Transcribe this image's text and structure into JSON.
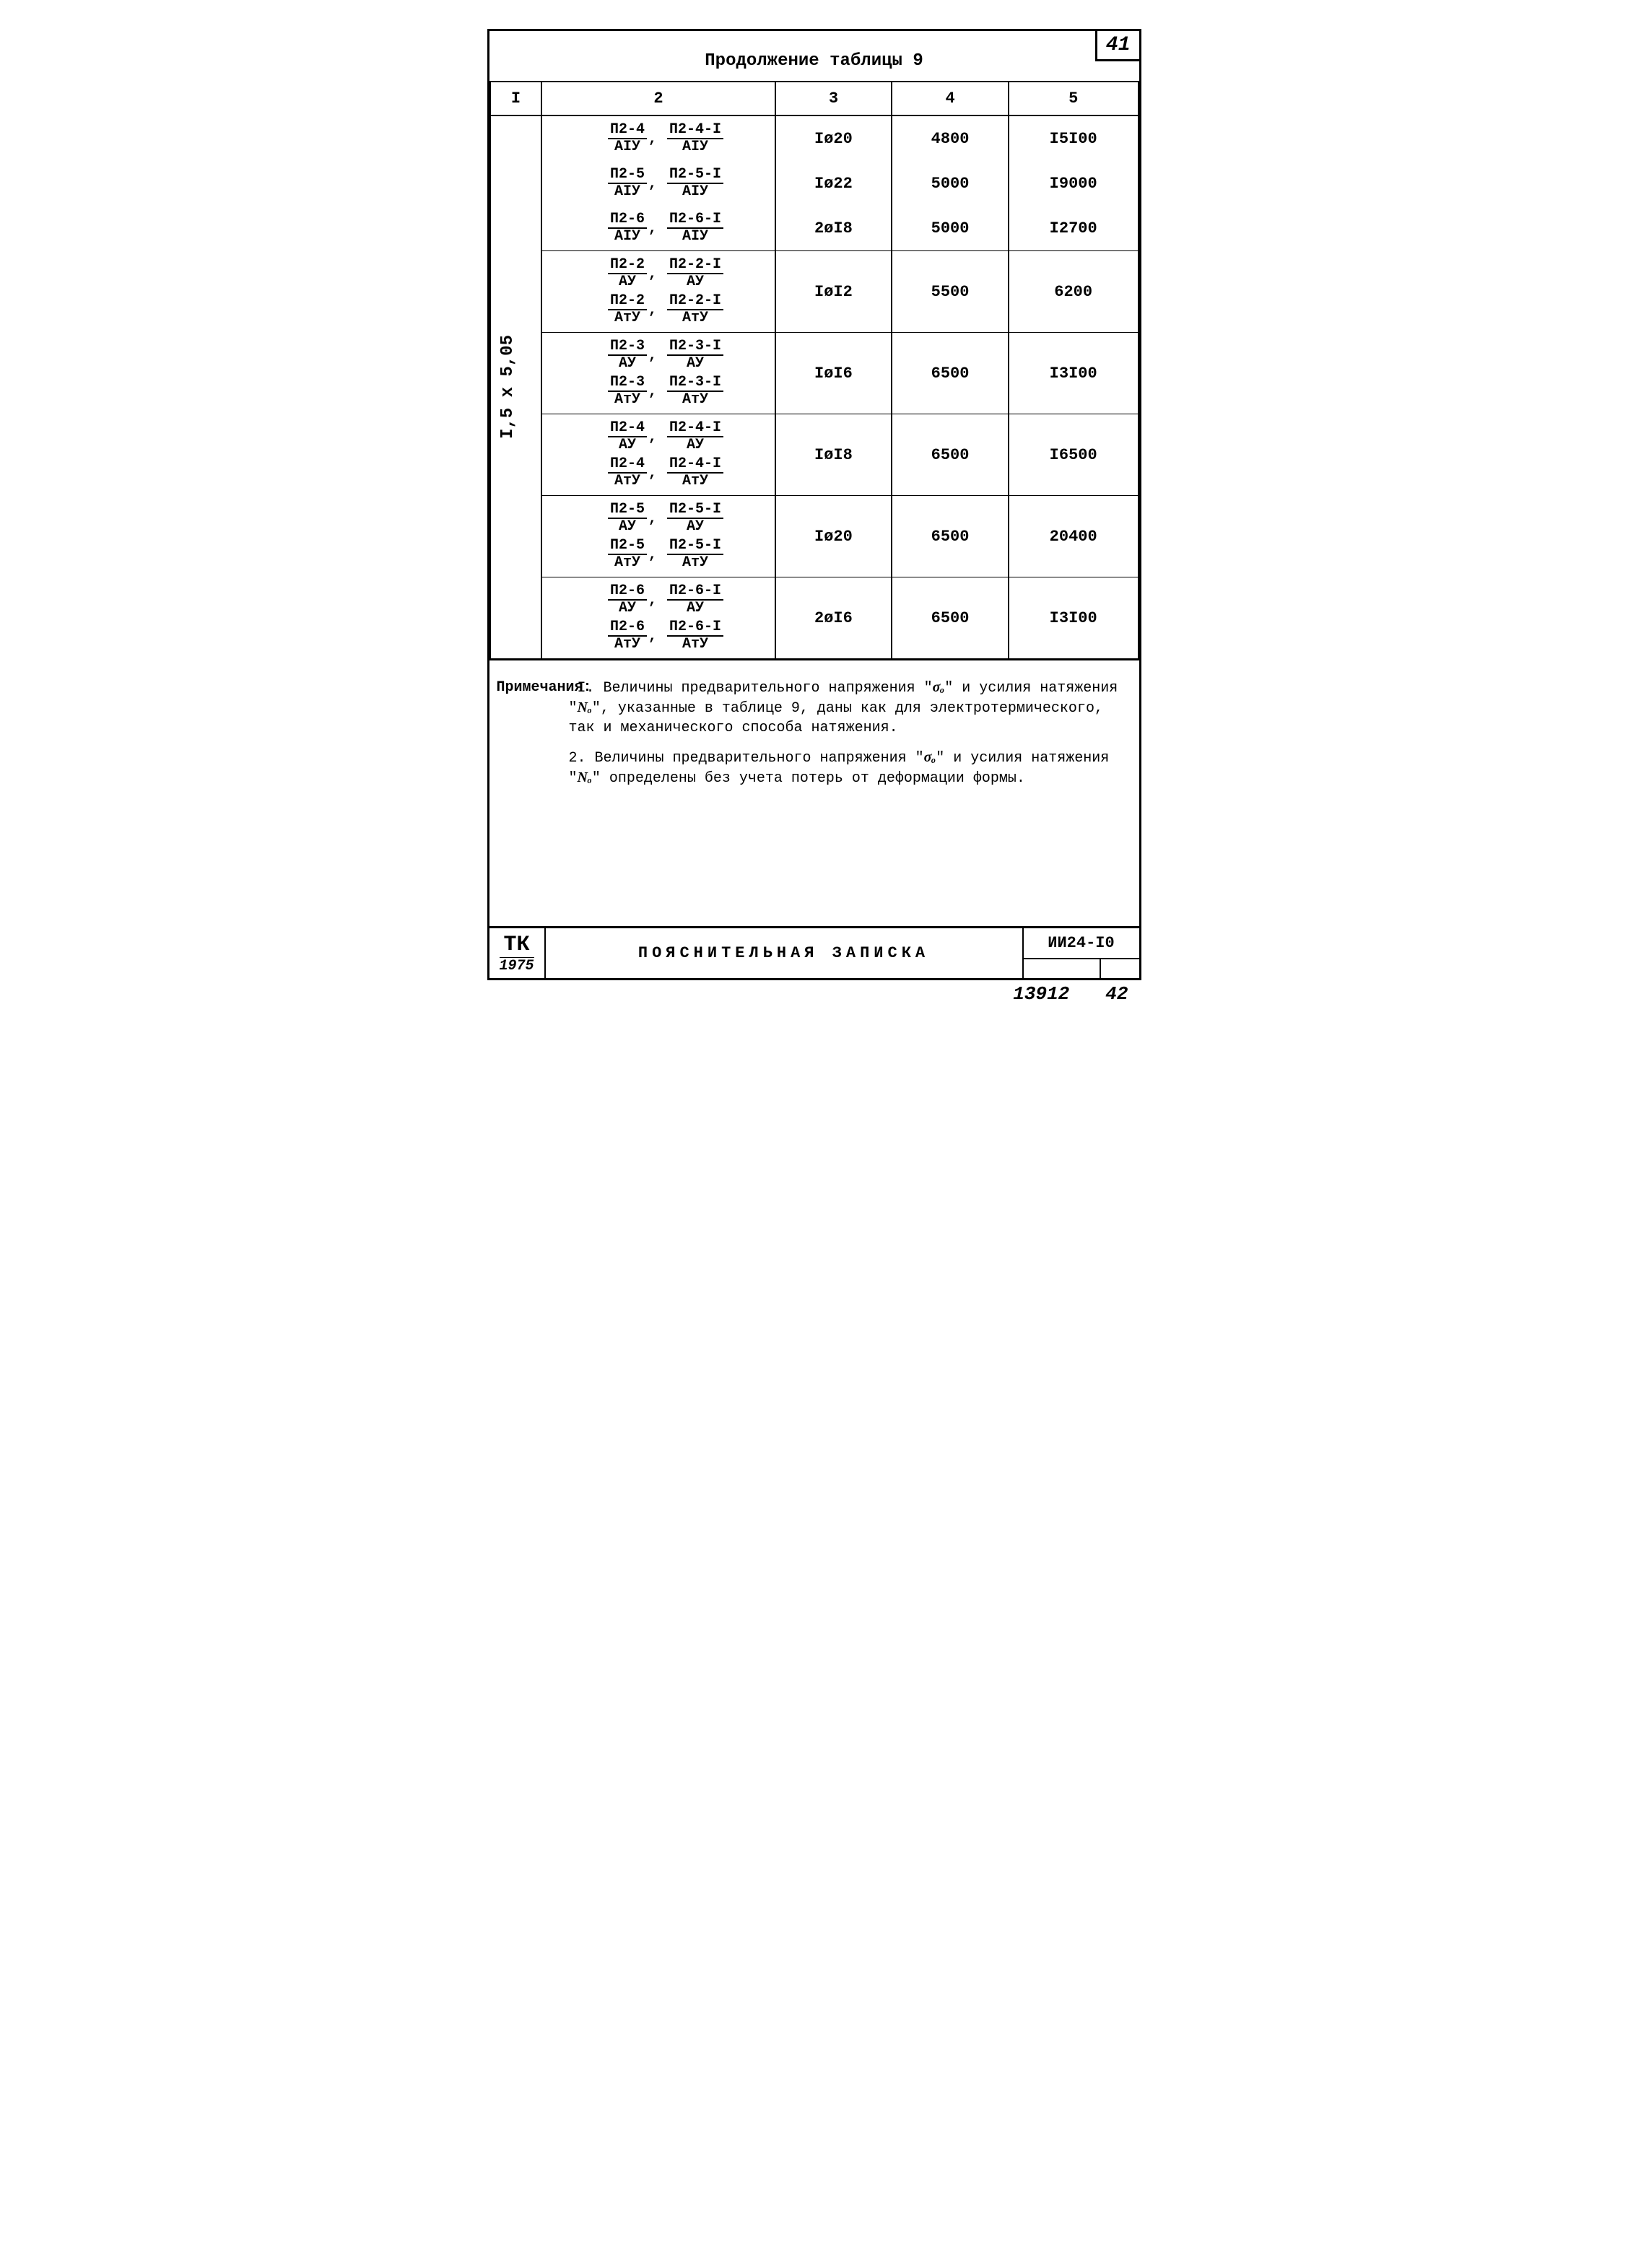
{
  "page_number": "41",
  "continuation_label": "Продолжение таблицы 9",
  "table": {
    "headers": [
      "I",
      "2",
      "3",
      "4",
      "5"
    ],
    "col1_span_label": "I,5 x 5,05",
    "rows": [
      {
        "group_sep": false,
        "c2": [
          [
            "П2-4",
            "АIУ",
            "П2-4-I",
            "АIУ"
          ]
        ],
        "c3": "Iø20",
        "c4": "4800",
        "c5": "I5I00"
      },
      {
        "group_sep": false,
        "c2": [
          [
            "П2-5",
            "АIУ",
            "П2-5-I",
            "АIУ"
          ]
        ],
        "c3": "Iø22",
        "c4": "5000",
        "c5": "I9000"
      },
      {
        "group_sep": true,
        "c2": [
          [
            "П2-6",
            "АIУ",
            "П2-6-I",
            "АIУ"
          ]
        ],
        "c3": "2øI8",
        "c4": "5000",
        "c5": "I2700"
      },
      {
        "group_sep": true,
        "c2": [
          [
            "П2-2",
            "АУ",
            "П2-2-I",
            "АУ"
          ],
          [
            "П2-2",
            "АтУ",
            "П2-2-I",
            "АтУ"
          ]
        ],
        "c3": "IøI2",
        "c4": "5500",
        "c5": "6200"
      },
      {
        "group_sep": true,
        "c2": [
          [
            "П2-3",
            "АУ",
            "П2-3-I",
            "АУ"
          ],
          [
            "П2-3",
            "АтУ",
            "П2-3-I",
            "АтУ"
          ]
        ],
        "c3": "IøI6",
        "c4": "6500",
        "c5": "I3I00"
      },
      {
        "group_sep": true,
        "c2": [
          [
            "П2-4",
            "АУ",
            "П2-4-I",
            "АУ"
          ],
          [
            "П2-4",
            "АтУ",
            "П2-4-I",
            "АтУ"
          ]
        ],
        "c3": "IøI8",
        "c4": "6500",
        "c5": "I6500"
      },
      {
        "group_sep": true,
        "c2": [
          [
            "П2-5",
            "АУ",
            "П2-5-I",
            "АУ"
          ],
          [
            "П2-5",
            "АтУ",
            "П2-5-I",
            "АтУ"
          ]
        ],
        "c3": "Iø20",
        "c4": "6500",
        "c5": "20400"
      },
      {
        "group_sep": true,
        "c2": [
          [
            "П2-6",
            "АУ",
            "П2-6-I",
            "АУ"
          ],
          [
            "П2-6",
            "АтУ",
            "П2-6-I",
            "АтУ"
          ]
        ],
        "c3": "2øI6",
        "c4": "6500",
        "c5": "I3I00"
      }
    ]
  },
  "notes": {
    "label": "Примечания:",
    "items": [
      {
        "n": "I.",
        "text_parts": [
          "Величины предварительного напряжения \"",
          "σₒ",
          "\" и усилия натяжения \"",
          "Nₒ",
          "\", указанные в таблице 9, даны как для электротермического, так и механического способа натяжения."
        ]
      },
      {
        "n": "2.",
        "text_parts": [
          "Величины предварительного напряжения \"",
          "σₒ",
          "\" и усилия натяжения \"",
          "Nₒ",
          "\" определены без учета потерь от деформации формы."
        ]
      }
    ]
  },
  "footer": {
    "tk": "ТК",
    "tk_year": "1975",
    "title": "ПОЯСНИТЕЛЬНАЯ ЗАПИСКА",
    "code": "ИИ24-I0"
  },
  "bottom": {
    "a": "13912",
    "b": "42"
  },
  "styles": {
    "border_color": "#000000",
    "background_color": "#ffffff",
    "text_color": "#000000",
    "base_fontsize": 22,
    "col_widths_pct": [
      8,
      36,
      18,
      18,
      20
    ]
  }
}
